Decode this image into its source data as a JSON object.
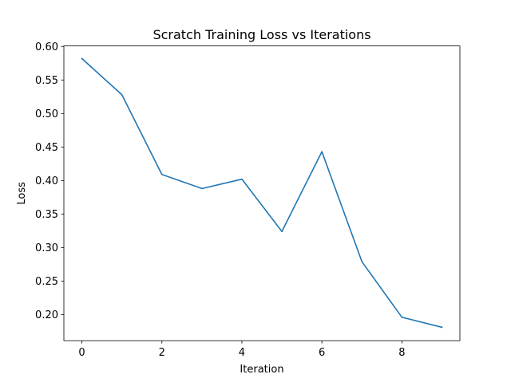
{
  "chart_data": {
    "type": "line",
    "title": "Scratch Training Loss vs Iterations",
    "xlabel": "Iteration",
    "ylabel": "Loss",
    "xlim": [
      -0.45,
      9.45
    ],
    "ylim": [
      0.161,
      0.6008
    ],
    "x_ticks": [
      0,
      2,
      4,
      6,
      8
    ],
    "x_tick_labels": [
      "0",
      "2",
      "4",
      "6",
      "8"
    ],
    "y_ticks": [
      0.2,
      0.25,
      0.3,
      0.35,
      0.4,
      0.45,
      0.5,
      0.55,
      0.6
    ],
    "y_tick_labels": [
      "0.20",
      "0.25",
      "0.30",
      "0.35",
      "0.40",
      "0.45",
      "0.50",
      "0.55",
      "0.60"
    ],
    "grid": false,
    "legend": "none",
    "series": [
      {
        "color": "#1f77b4",
        "x": [
          0,
          1,
          2,
          3,
          4,
          5,
          6,
          7,
          8,
          9
        ],
        "values": [
          0.582,
          0.528,
          0.409,
          0.388,
          0.402,
          0.324,
          0.443,
          0.279,
          0.196,
          0.181
        ]
      }
    ]
  }
}
